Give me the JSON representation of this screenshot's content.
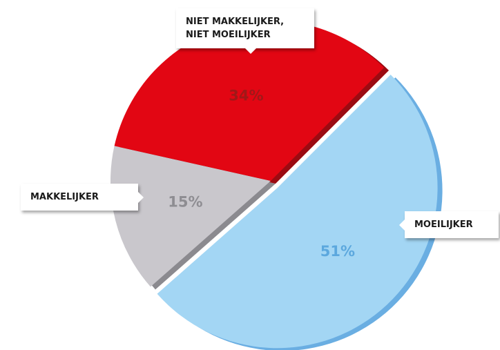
{
  "chart_data": {
    "type": "pie",
    "categories": [
      "MOEILIJKER",
      "MAKKELIJKER",
      "NIET MAKKELIJKER, NIET MOEILIJKER"
    ],
    "values": [
      51,
      15,
      34
    ],
    "value_labels": [
      "51%",
      "15%",
      "34%"
    ],
    "colors": [
      "#a3d6f4",
      "#c9c7cc",
      "#e20613"
    ]
  }
}
